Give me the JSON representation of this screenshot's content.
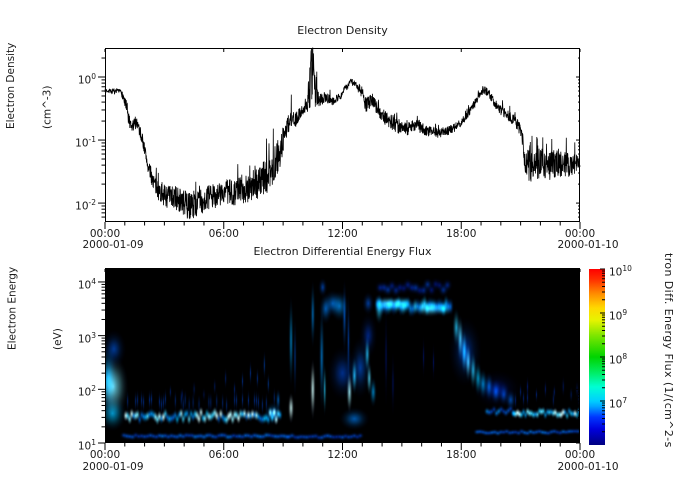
{
  "chart_data": [
    {
      "type": "line",
      "title": "Electron Density",
      "ylabel": "Electron Density",
      "ylabel_units": "(cm^-3)",
      "date_left": "2000-01-09",
      "date_right": "2000-01-10",
      "x_ticks": [
        {
          "hour": 0,
          "label": "00:00"
        },
        {
          "hour": 6,
          "label": "06:00"
        },
        {
          "hour": 12,
          "label": "12:00"
        },
        {
          "hour": 18,
          "label": "18:00"
        },
        {
          "hour": 24,
          "label": "00:00"
        }
      ],
      "x_minor_step_hours": 1,
      "x_range_hours": [
        0,
        24
      ],
      "y_scale": "log",
      "log_base": 10,
      "y_range_log": [
        -2.3,
        0.46
      ],
      "y_tick_exponents": [
        0,
        -1,
        -2
      ],
      "line_color": "#000000",
      "grid": false,
      "keypoints_hour_value_lognoise": [
        [
          0.0,
          0.62,
          0.03
        ],
        [
          0.5,
          0.58,
          0.04
        ],
        [
          0.8,
          0.6,
          0.03
        ],
        [
          0.95,
          0.45,
          0.1
        ],
        [
          1.1,
          0.3,
          0.14
        ],
        [
          1.3,
          0.15,
          0.12
        ],
        [
          1.6,
          0.2,
          0.1
        ],
        [
          1.9,
          0.1,
          0.1
        ],
        [
          2.2,
          0.035,
          0.12
        ],
        [
          2.6,
          0.017,
          0.15
        ],
        [
          3.0,
          0.013,
          0.18
        ],
        [
          3.6,
          0.012,
          0.2
        ],
        [
          4.2,
          0.009,
          0.22
        ],
        [
          4.7,
          0.01,
          0.22
        ],
        [
          5.2,
          0.012,
          0.2
        ],
        [
          5.8,
          0.014,
          0.2
        ],
        [
          6.5,
          0.015,
          0.22
        ],
        [
          7.2,
          0.018,
          0.25
        ],
        [
          7.8,
          0.022,
          0.27
        ],
        [
          8.3,
          0.028,
          0.28
        ],
        [
          8.8,
          0.06,
          0.26
        ],
        [
          9.1,
          0.13,
          0.2
        ],
        [
          9.35,
          0.22,
          0.17
        ],
        [
          9.6,
          0.2,
          0.12
        ],
        [
          9.9,
          0.28,
          0.08
        ],
        [
          10.15,
          0.33,
          0.1
        ],
        [
          10.35,
          0.8,
          0.42
        ],
        [
          10.5,
          1.2,
          0.48
        ],
        [
          10.65,
          0.6,
          0.32
        ],
        [
          10.8,
          0.42,
          0.12
        ],
        [
          11.1,
          0.48,
          0.08
        ],
        [
          11.5,
          0.42,
          0.07
        ],
        [
          11.9,
          0.5,
          0.06
        ],
        [
          12.2,
          0.7,
          0.06
        ],
        [
          12.45,
          0.85,
          0.05
        ],
        [
          12.7,
          0.72,
          0.07
        ],
        [
          12.95,
          0.6,
          0.1
        ],
        [
          13.2,
          0.35,
          0.12
        ],
        [
          13.5,
          0.45,
          0.1
        ],
        [
          13.8,
          0.3,
          0.12
        ],
        [
          14.2,
          0.22,
          0.12
        ],
        [
          14.7,
          0.17,
          0.12
        ],
        [
          15.2,
          0.15,
          0.12
        ],
        [
          15.7,
          0.18,
          0.1
        ],
        [
          16.2,
          0.14,
          0.1
        ],
        [
          16.7,
          0.13,
          0.08
        ],
        [
          17.2,
          0.135,
          0.08
        ],
        [
          17.7,
          0.16,
          0.07
        ],
        [
          18.2,
          0.22,
          0.06
        ],
        [
          18.6,
          0.35,
          0.06
        ],
        [
          18.9,
          0.5,
          0.06
        ],
        [
          19.15,
          0.62,
          0.06
        ],
        [
          19.4,
          0.55,
          0.07
        ],
        [
          19.7,
          0.38,
          0.07
        ],
        [
          20.0,
          0.3,
          0.08
        ],
        [
          20.4,
          0.24,
          0.08
        ],
        [
          20.8,
          0.18,
          0.1
        ],
        [
          21.05,
          0.13,
          0.1
        ],
        [
          21.2,
          0.045,
          0.24
        ],
        [
          21.6,
          0.035,
          0.27
        ],
        [
          22.0,
          0.045,
          0.24
        ],
        [
          22.4,
          0.038,
          0.24
        ],
        [
          22.9,
          0.045,
          0.22
        ],
        [
          23.4,
          0.04,
          0.2
        ],
        [
          24.0,
          0.045,
          0.15
        ]
      ]
    },
    {
      "type": "heatmap",
      "title": "Electron Differential Energy Flux",
      "ylabel": "Electron Energy",
      "ylabel_units": "(eV)",
      "date_left": "2000-01-09",
      "date_right": "2000-01-10",
      "x_ticks": [
        {
          "hour": 0,
          "label": "00:00"
        },
        {
          "hour": 6,
          "label": "06:00"
        },
        {
          "hour": 12,
          "label": "12:00"
        },
        {
          "hour": 18,
          "label": "18:00"
        },
        {
          "hour": 24,
          "label": "00:00"
        }
      ],
      "x_minor_step_hours": 1,
      "x_range_hours": [
        0,
        24
      ],
      "y_scale": "log",
      "log_base": 10,
      "y_range_log": [
        1.0,
        4.26
      ],
      "y_tick_exponents": [
        4,
        3,
        2,
        1
      ],
      "background_color": "#000000",
      "colorbar": {
        "label": "tron Diff. Energy Flux (1/(cm^2-s",
        "range_log": [
          6,
          10
        ],
        "tick_exponents": [
          10,
          9,
          8,
          7
        ],
        "gradient_stops": [
          [
            "#000080",
            0.0
          ],
          [
            "#0000dd",
            0.09
          ],
          [
            "#0038ff",
            0.16
          ],
          [
            "#00a8ff",
            0.22
          ],
          [
            "#00cfff",
            0.25
          ],
          [
            "#00ffd4",
            0.33
          ],
          [
            "#00ee66",
            0.41
          ],
          [
            "#00d400",
            0.5
          ],
          [
            "#7ce600",
            0.62
          ],
          [
            "#e8f400",
            0.71
          ],
          [
            "#ffd800",
            0.78
          ],
          [
            "#ff8c00",
            0.86
          ],
          [
            "#ff3000",
            0.94
          ],
          [
            "#ff0000",
            1.0
          ]
        ]
      },
      "intensity_note": "relative 0-1 brightness of blue-cyan features over black background",
      "bands": [
        {
          "t0": 1.05,
          "t1": 8.85,
          "e": 1.5,
          "we": 0.16,
          "i": 0.8,
          "step": 0.1,
          "je": 0.07,
          "ji": 0.3,
          "spikeP": 0.35,
          "spikeWe": 0.3,
          "spikeI": 0.55
        },
        {
          "t0": 0.95,
          "t1": 9.3,
          "e": 1.13,
          "we": 0.1,
          "i": 0.5,
          "step": 0.15,
          "je": 0.02,
          "ji": 0.2,
          "spikeP": 0,
          "spikeWe": 0,
          "spikeI": 0
        },
        {
          "t0": 9.3,
          "t1": 13.05,
          "e": 1.12,
          "we": 0.1,
          "i": 0.45,
          "step": 0.15,
          "je": 0.02,
          "ji": 0.2,
          "spikeP": 0,
          "spikeWe": 0,
          "spikeI": 0
        },
        {
          "t0": 18.8,
          "t1": 24.0,
          "e": 1.2,
          "we": 0.09,
          "i": 0.5,
          "step": 0.15,
          "je": 0.02,
          "ji": 0.2,
          "spikeP": 0,
          "spikeWe": 0,
          "spikeI": 0
        },
        {
          "t0": 20.65,
          "t1": 24.0,
          "e": 1.55,
          "we": 0.13,
          "i": 0.85,
          "step": 0.1,
          "je": 0.05,
          "ji": 0.25,
          "spikeP": 0.3,
          "spikeWe": 0.28,
          "spikeI": 0.45
        },
        {
          "t0": 19.3,
          "t1": 20.65,
          "e": 1.6,
          "we": 0.12,
          "i": 0.55,
          "step": 0.12,
          "je": 0.05,
          "ji": 0.25,
          "spikeP": 0,
          "spikeWe": 0,
          "spikeI": 0
        },
        {
          "t0": 13.75,
          "t1": 17.55,
          "e": 3.55,
          "we": 0.24,
          "i": 0.7,
          "step": 0.12,
          "je": 0.05,
          "ji": 0.2,
          "spikeP": 0,
          "spikeWe": 0,
          "spikeI": 0
        },
        {
          "t0": 13.9,
          "t1": 17.4,
          "e": 3.9,
          "we": 0.18,
          "i": 0.35,
          "step": 0.2,
          "je": 0.06,
          "ji": 0.3,
          "spikeP": 0,
          "spikeWe": 0,
          "spikeI": 0
        }
      ],
      "blobs": [
        [
          0.42,
          2.05,
          0.5,
          0.8,
          0.9
        ],
        [
          0.38,
          1.55,
          0.45,
          0.45,
          0.75
        ],
        [
          0.45,
          2.75,
          0.4,
          0.5,
          0.5
        ],
        [
          0.15,
          2.2,
          0.3,
          0.9,
          0.7
        ],
        [
          8.5,
          1.55,
          0.3,
          0.3,
          0.65
        ],
        [
          8.75,
          1.8,
          0.08,
          0.3,
          0.6
        ],
        [
          9.4,
          1.65,
          0.1,
          0.4,
          1.0
        ],
        [
          9.4,
          2.9,
          0.08,
          1.2,
          0.7
        ],
        [
          9.6,
          2.6,
          0.05,
          1.1,
          0.5
        ],
        [
          10.5,
          2.0,
          0.09,
          0.8,
          1.0
        ],
        [
          10.5,
          3.4,
          0.08,
          0.9,
          0.65
        ],
        [
          10.95,
          2.6,
          0.09,
          1.4,
          0.65
        ],
        [
          11.0,
          3.9,
          0.15,
          0.25,
          0.5
        ],
        [
          11.1,
          2.0,
          0.06,
          0.7,
          0.8
        ],
        [
          11.15,
          3.5,
          0.22,
          0.4,
          0.6
        ],
        [
          11.5,
          3.6,
          0.3,
          0.35,
          0.6
        ],
        [
          11.85,
          3.55,
          0.3,
          0.4,
          0.65
        ],
        [
          12.1,
          3.35,
          0.08,
          1.0,
          0.55
        ],
        [
          12.3,
          2.9,
          0.06,
          1.3,
          0.5
        ],
        [
          12.0,
          2.3,
          0.5,
          0.7,
          0.45
        ],
        [
          12.35,
          1.95,
          0.1,
          0.55,
          0.95
        ],
        [
          12.6,
          2.25,
          0.1,
          0.5,
          0.8
        ],
        [
          12.9,
          2.4,
          0.35,
          0.8,
          0.5
        ],
        [
          12.6,
          1.45,
          0.5,
          0.3,
          0.6
        ],
        [
          13.25,
          2.65,
          0.1,
          0.5,
          0.8
        ],
        [
          13.35,
          2.2,
          0.09,
          0.45,
          0.85
        ],
        [
          13.55,
          1.95,
          0.12,
          0.4,
          0.7
        ],
        [
          13.3,
          3.0,
          0.3,
          0.6,
          0.4
        ],
        [
          13.3,
          3.6,
          0.2,
          0.3,
          0.5
        ],
        [
          13.85,
          3.5,
          0.15,
          0.4,
          0.8
        ],
        [
          14.2,
          2.6,
          0.05,
          1.4,
          0.3
        ],
        [
          14.55,
          2.1,
          0.05,
          0.9,
          0.3
        ],
        [
          14.3,
          3.6,
          0.45,
          0.2,
          0.85
        ],
        [
          15.0,
          3.6,
          0.4,
          0.2,
          0.8
        ],
        [
          16.4,
          3.5,
          0.5,
          0.22,
          0.85
        ],
        [
          17.1,
          3.5,
          0.3,
          0.2,
          0.8
        ],
        [
          16.1,
          2.6,
          0.04,
          0.6,
          0.3
        ],
        [
          16.6,
          2.5,
          0.04,
          0.55,
          0.28
        ],
        [
          17.75,
          3.15,
          0.13,
          0.5,
          0.8
        ],
        [
          17.95,
          2.95,
          0.11,
          0.6,
          0.85
        ],
        [
          18.15,
          2.7,
          0.11,
          0.6,
          0.8
        ],
        [
          18.35,
          2.5,
          0.11,
          0.5,
          0.85
        ],
        [
          18.6,
          2.35,
          0.12,
          0.5,
          0.8
        ],
        [
          18.85,
          2.2,
          0.13,
          0.45,
          0.75
        ],
        [
          18.2,
          2.7,
          0.55,
          0.9,
          0.45
        ],
        [
          19.1,
          2.1,
          0.15,
          0.4,
          0.7
        ],
        [
          19.4,
          2.05,
          0.15,
          0.38,
          0.6
        ],
        [
          19.75,
          1.95,
          0.18,
          0.33,
          0.55
        ],
        [
          20.15,
          1.9,
          0.18,
          0.3,
          0.5
        ],
        [
          20.5,
          1.8,
          0.18,
          0.28,
          0.55
        ],
        [
          19.8,
          2.0,
          0.8,
          0.5,
          0.3
        ],
        [
          21.0,
          1.95,
          0.04,
          0.25,
          0.4
        ],
        [
          21.35,
          2.05,
          0.04,
          0.3,
          0.35
        ],
        [
          21.8,
          1.9,
          0.04,
          0.22,
          0.4
        ],
        [
          22.25,
          2.0,
          0.04,
          0.28,
          0.35
        ],
        [
          22.7,
          1.95,
          0.04,
          0.22,
          0.38
        ],
        [
          23.15,
          2.05,
          0.04,
          0.3,
          0.35
        ],
        [
          23.55,
          1.9,
          0.04,
          0.22,
          0.4
        ],
        [
          23.85,
          2.0,
          0.04,
          0.25,
          0.35
        ],
        [
          3.3,
          1.95,
          0.035,
          0.22,
          0.4
        ],
        [
          3.9,
          1.9,
          0.03,
          0.2,
          0.35
        ],
        [
          4.5,
          2.0,
          0.035,
          0.25,
          0.4
        ],
        [
          5.0,
          1.9,
          0.03,
          0.2,
          0.35
        ],
        [
          5.55,
          2.05,
          0.035,
          0.25,
          0.4
        ],
        [
          6.1,
          2.2,
          0.035,
          0.3,
          0.4
        ],
        [
          6.55,
          2.0,
          0.03,
          0.25,
          0.4
        ],
        [
          6.95,
          2.15,
          0.035,
          0.3,
          0.45
        ],
        [
          7.35,
          2.3,
          0.04,
          0.35,
          0.45
        ],
        [
          7.7,
          2.2,
          0.04,
          0.3,
          0.45
        ],
        [
          8.05,
          2.45,
          0.04,
          0.4,
          0.5
        ],
        [
          8.25,
          2.1,
          0.04,
          0.3,
          0.5
        ]
      ]
    }
  ]
}
